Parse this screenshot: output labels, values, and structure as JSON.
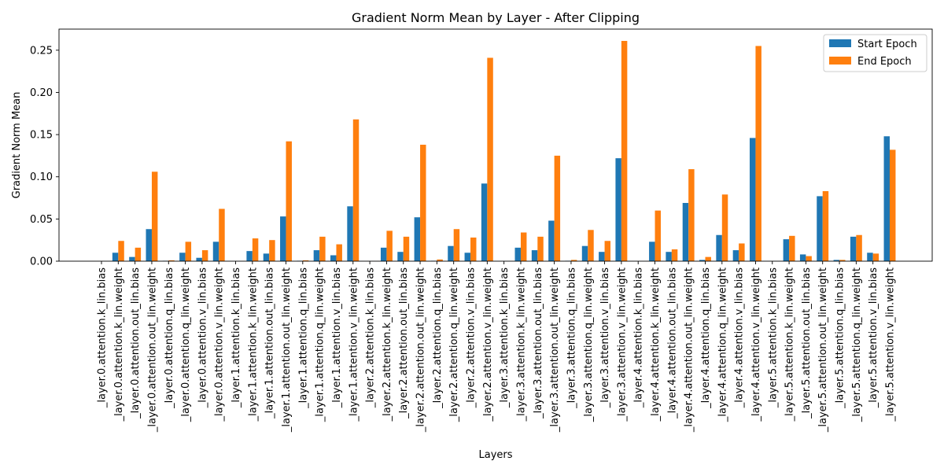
{
  "chart_data": {
    "type": "bar",
    "title": "Gradient Norm Mean by Layer - After Clipping",
    "xlabel": "Layers",
    "ylabel": "Gradient Norm Mean",
    "ylim": [
      0,
      0.275
    ],
    "yticks": [
      0.0,
      0.05,
      0.1,
      0.15,
      0.2,
      0.25
    ],
    "ytick_labels": [
      "0.00",
      "0.05",
      "0.10",
      "0.15",
      "0.20",
      "0.25"
    ],
    "legend_position": "top-right",
    "grid": false,
    "categories": [
      "_layer.0.attention.k_lin.bias",
      "_layer.0.attention.k_lin.weight",
      "_layer.0.attention.out_lin.bias",
      "_layer.0.attention.out_lin.weight",
      "_layer.0.attention.q_lin.bias",
      "_layer.0.attention.q_lin.weight",
      "_layer.0.attention.v_lin.bias",
      "_layer.0.attention.v_lin.weight",
      "_layer.1.attention.k_lin.bias",
      "_layer.1.attention.k_lin.weight",
      "_layer.1.attention.out_lin.bias",
      "_layer.1.attention.out_lin.weight",
      "_layer.1.attention.q_lin.bias",
      "_layer.1.attention.q_lin.weight",
      "_layer.1.attention.v_lin.bias",
      "_layer.1.attention.v_lin.weight",
      "_layer.2.attention.k_lin.bias",
      "_layer.2.attention.k_lin.weight",
      "_layer.2.attention.out_lin.bias",
      "_layer.2.attention.out_lin.weight",
      "_layer.2.attention.q_lin.bias",
      "_layer.2.attention.q_lin.weight",
      "_layer.2.attention.v_lin.bias",
      "_layer.2.attention.v_lin.weight",
      "_layer.3.attention.k_lin.bias",
      "_layer.3.attention.k_lin.weight",
      "_layer.3.attention.out_lin.bias",
      "_layer.3.attention.out_lin.weight",
      "_layer.3.attention.q_lin.bias",
      "_layer.3.attention.q_lin.weight",
      "_layer.3.attention.v_lin.bias",
      "_layer.3.attention.v_lin.weight",
      "_layer.4.attention.k_lin.bias",
      "_layer.4.attention.k_lin.weight",
      "_layer.4.attention.out_lin.bias",
      "_layer.4.attention.out_lin.weight",
      "_layer.4.attention.q_lin.bias",
      "_layer.4.attention.q_lin.weight",
      "_layer.4.attention.v_lin.bias",
      "_layer.4.attention.v_lin.weight",
      "_layer.5.attention.k_lin.bias",
      "_layer.5.attention.k_lin.weight",
      "_layer.5.attention.out_lin.bias",
      "_layer.5.attention.out_lin.weight",
      "_layer.5.attention.q_lin.bias",
      "_layer.5.attention.q_lin.weight",
      "_layer.5.attention.v_lin.bias",
      "_layer.5.attention.v_lin.weight"
    ],
    "series": [
      {
        "name": "Start Epoch",
        "color": "#1f77b4",
        "values": [
          0.0,
          0.01,
          0.005,
          0.038,
          0.0005,
          0.01,
          0.004,
          0.023,
          0.0,
          0.012,
          0.009,
          0.053,
          0.0005,
          0.013,
          0.007,
          0.065,
          0.0,
          0.016,
          0.011,
          0.052,
          0.0005,
          0.018,
          0.01,
          0.092,
          0.0,
          0.016,
          0.013,
          0.048,
          0.0005,
          0.018,
          0.011,
          0.122,
          0.0,
          0.023,
          0.011,
          0.069,
          0.0015,
          0.031,
          0.013,
          0.146,
          0.0,
          0.026,
          0.008,
          0.077,
          0.0015,
          0.029,
          0.01,
          0.148
        ]
      },
      {
        "name": "End Epoch",
        "color": "#ff7f0e",
        "values": [
          0.0,
          0.024,
          0.016,
          0.106,
          0.001,
          0.023,
          0.013,
          0.062,
          0.0,
          0.027,
          0.025,
          0.142,
          0.001,
          0.029,
          0.02,
          0.168,
          0.0,
          0.036,
          0.029,
          0.138,
          0.002,
          0.038,
          0.028,
          0.241,
          0.0,
          0.034,
          0.029,
          0.125,
          0.0015,
          0.037,
          0.024,
          0.261,
          0.0,
          0.06,
          0.014,
          0.109,
          0.005,
          0.079,
          0.021,
          0.255,
          0.0,
          0.03,
          0.006,
          0.083,
          0.0015,
          0.031,
          0.009,
          0.132
        ]
      }
    ]
  }
}
